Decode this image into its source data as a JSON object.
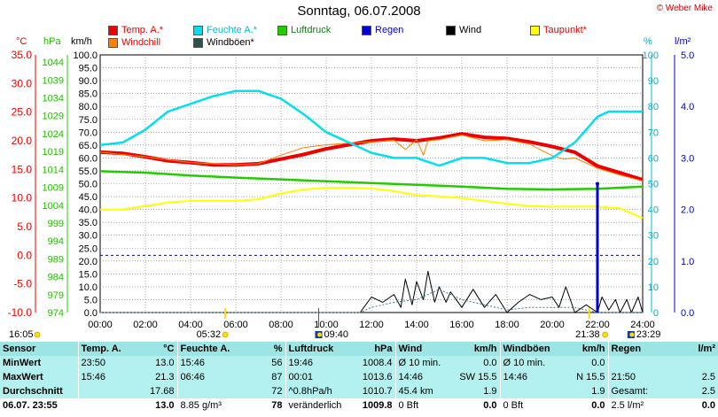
{
  "title": "Sonntag, 06.07.2008",
  "credit": "© Weber Mike",
  "legend": [
    {
      "label": "Temp. A.*",
      "color": "#ee0000",
      "text_color": "#ee0000"
    },
    {
      "label": "Windchill",
      "color": "#ff8000",
      "text_color": "#ee0000"
    },
    {
      "label": "Feuchte A.*",
      "color": "#00e0f0",
      "text_color": "#00c0d0"
    },
    {
      "label": "Windböen*",
      "color": "#2f4f4f",
      "text_color": "#000000"
    },
    {
      "label": "Luftdruck",
      "color": "#22cc00",
      "text_color": "#008800"
    },
    {
      "label": "Regen",
      "color": "#0000dd",
      "text_color": "#0000dd"
    },
    {
      "label": "Wind",
      "color": "#000000",
      "text_color": "#000000"
    },
    {
      "label": "Taupunkt*",
      "color": "#ffff00",
      "text_color": "#ee0000"
    }
  ],
  "units": {
    "temp": "°C",
    "pressure": "hPa",
    "wind": "km/h",
    "humidity": "%",
    "rain": "l/m²"
  },
  "colors": {
    "temp": "#ee0000",
    "windchill": "#ff8000",
    "humidity": "#00e0f0",
    "pressure": "#22cc00",
    "rain": "#0000cc",
    "wind": "#000000",
    "gust": "#2f4f4f",
    "dewpoint": "#ffff00",
    "grid": "#777777"
  },
  "sun": {
    "rise_left": "16:05",
    "rise": "05:32",
    "moon_rise": "09:40",
    "set": "21:38",
    "moon_set": "23:29"
  },
  "chart_data": {
    "type": "line",
    "title": "Sonntag, 06.07.2008",
    "x_ticks": [
      "00:00",
      "02:00",
      "04:00",
      "06:00",
      "08:00",
      "10:00",
      "12:00",
      "14:00",
      "16:00",
      "18:00",
      "20:00",
      "22:00",
      "24:00"
    ],
    "x_range_hours": [
      0,
      24
    ],
    "y_axes": {
      "temp": {
        "min": -10,
        "max": 35,
        "ticks": [
          "35.0",
          "30.0",
          "25.0",
          "20.0",
          "15.0",
          "10.0",
          "5.0",
          "0.0",
          "-5.0",
          "-10.0"
        ]
      },
      "pressure": {
        "min": 974,
        "max": 1046,
        "ticks": [
          "1044",
          "1039",
          "1034",
          "1029",
          "1024",
          "1019",
          "1014",
          "1009",
          "1004",
          "999",
          "994",
          "989",
          "984",
          "979",
          "974"
        ]
      },
      "wind": {
        "min": 0,
        "max": 100,
        "ticks": [
          "100.0",
          "95.0",
          "90.0",
          "85.0",
          "80.0",
          "75.0",
          "70.0",
          "65.0",
          "60.0",
          "55.0",
          "50.0",
          "45.0",
          "40.0",
          "35.0",
          "30.0",
          "25.0",
          "20.0",
          "15.0",
          "10.0",
          "5.0",
          "0.0"
        ]
      },
      "humidity": {
        "min": 0,
        "max": 100,
        "ticks": [
          "100",
          "90",
          "80",
          "70",
          "60",
          "50",
          "40",
          "30",
          "20",
          "10",
          "0"
        ]
      },
      "rain": {
        "min": 0,
        "max": 5,
        "ticks": [
          "5.0",
          "4.0",
          "3.0",
          "2.0",
          "1.0",
          "0.0"
        ]
      }
    },
    "series": [
      {
        "name": "Temp. A.*",
        "axis": "temp",
        "x": [
          0,
          1,
          2,
          3,
          4,
          5,
          6,
          7,
          8,
          9,
          10,
          11,
          12,
          13,
          14,
          15,
          16,
          17,
          18,
          19,
          20,
          21,
          22,
          23,
          24
        ],
        "y": [
          18.0,
          17.8,
          17.2,
          16.5,
          16.2,
          15.8,
          15.8,
          16.0,
          16.8,
          17.6,
          18.6,
          19.3,
          20.0,
          20.3,
          20.0,
          20.5,
          21.2,
          20.6,
          20.4,
          19.8,
          19.0,
          18.0,
          15.6,
          14.4,
          13.2
        ]
      },
      {
        "name": "Windchill",
        "axis": "temp",
        "x": [
          0,
          2,
          4,
          6,
          7,
          8,
          9,
          10,
          11,
          12,
          13,
          13.5,
          14,
          14.3,
          14.5,
          15,
          16,
          17,
          18,
          19,
          20,
          20.5,
          21,
          22,
          23,
          24
        ],
        "y": [
          18.0,
          17.2,
          16.2,
          15.8,
          16.0,
          17.5,
          18.8,
          19.3,
          19.6,
          19.8,
          20.1,
          18.5,
          20.2,
          17.5,
          20.0,
          20.2,
          21.0,
          20.0,
          20.2,
          19.4,
          17.4,
          16.8,
          17.0,
          15.2,
          14.0,
          13.0
        ]
      },
      {
        "name": "Feuchte A.*",
        "axis": "humidity",
        "x": [
          0,
          1,
          2,
          3,
          4,
          5,
          6,
          7,
          8,
          9,
          10,
          11,
          12,
          13,
          14,
          15,
          16,
          17,
          18,
          19,
          20,
          21,
          21.5,
          22,
          22.5,
          23,
          24
        ],
        "y": [
          65,
          66,
          71,
          78,
          81,
          84,
          86,
          86,
          83,
          77,
          70,
          66,
          62,
          60,
          60,
          57,
          60,
          60,
          58,
          58,
          60,
          66,
          71,
          76,
          78,
          78,
          78
        ]
      },
      {
        "name": "Luftdruck",
        "axis": "pressure",
        "x": [
          0,
          2,
          4,
          6,
          8,
          10,
          12,
          14,
          16,
          18,
          20,
          22,
          24
        ],
        "y": [
          1013.5,
          1013.1,
          1012.3,
          1011.7,
          1011.2,
          1010.7,
          1010.2,
          1009.7,
          1009.2,
          1008.6,
          1008.4,
          1008.6,
          1009.2
        ]
      },
      {
        "name": "Taupunkt*",
        "axis": "temp",
        "x": [
          0,
          1,
          2,
          3,
          4,
          5,
          6,
          7,
          8,
          9,
          10,
          11,
          12,
          13,
          14,
          15,
          16,
          17,
          18,
          19,
          20,
          21,
          22,
          23,
          24
        ],
        "y": [
          8.0,
          8.0,
          8.6,
          9.2,
          9.5,
          9.5,
          9.5,
          9.8,
          10.8,
          11.5,
          11.8,
          11.8,
          11.7,
          11.2,
          10.5,
          10.3,
          10.0,
          9.5,
          9.0,
          8.6,
          8.5,
          8.5,
          8.5,
          8.2,
          6.5
        ]
      },
      {
        "name": "Wind",
        "axis": "wind",
        "x": [
          0,
          11.5,
          12,
          12.5,
          13,
          13.3,
          13.5,
          13.8,
          14,
          14.3,
          14.5,
          14.8,
          15,
          15.3,
          15.5,
          16,
          16.5,
          17,
          17.5,
          18,
          18.5,
          19,
          19.5,
          20,
          20.3,
          20.6,
          21,
          21.5,
          22,
          22.2,
          22.5,
          22.8,
          23,
          23.3,
          23.5,
          23.8,
          24
        ],
        "y": [
          0,
          0,
          6,
          4,
          7,
          2,
          13,
          3,
          12,
          5,
          16,
          4,
          10,
          4,
          8,
          2,
          9,
          2,
          7,
          0,
          4,
          7,
          5,
          6,
          2,
          10,
          0,
          3,
          0,
          6,
          1,
          5,
          0,
          5,
          0,
          6,
          0
        ]
      },
      {
        "name": "Windböen*",
        "axis": "wind",
        "x": [
          0,
          11.5,
          12,
          13,
          14,
          15,
          16,
          17,
          18,
          19,
          20,
          21,
          22,
          23,
          24
        ],
        "y": [
          0,
          0,
          2,
          4,
          5,
          9,
          5,
          3,
          1,
          2,
          2,
          2,
          0,
          0,
          0
        ]
      },
      {
        "name": "Regen",
        "axis": "rain",
        "type": "bar",
        "x": [
          22
        ],
        "y": [
          2.5
        ]
      }
    ]
  },
  "stats": {
    "headers": [
      "Sensor",
      "Temp. A.",
      "°C",
      "Feuchte A.",
      "%",
      "Luftdruck",
      "hPa",
      "Wind",
      "km/h",
      "Windböen",
      "km/h",
      "Regen",
      "l/m²"
    ],
    "rows": [
      [
        "MinWert",
        "23:50",
        "13.0",
        "15:46",
        "56",
        "19:46",
        "1008.4",
        "Ø 10 min.",
        "0.0",
        "Ø 10 min.",
        "0.0",
        "",
        ""
      ],
      [
        "MaxWert",
        "15:46",
        "21.3",
        "06:46",
        "87",
        "00:01",
        "1013.6",
        "14:46",
        "SW 15.5",
        "14:46",
        "N 15.5",
        "21:50",
        "2.5"
      ],
      [
        "Durchschnitt",
        "",
        "17.68",
        "",
        "72",
        "^0.8hPa/h",
        "1010.7",
        "45.4 km",
        "1.9",
        "",
        "1.9",
        "Gesamt:",
        "2.5"
      ],
      [
        "06.07. 23:55",
        "",
        "13.0",
        "8.85 g/m³",
        "78",
        "veränderlich",
        "1009.8",
        "0 Bft",
        "0.0",
        "0 Bft",
        "0.0",
        "2.5 l/m²",
        "0.0"
      ]
    ]
  }
}
